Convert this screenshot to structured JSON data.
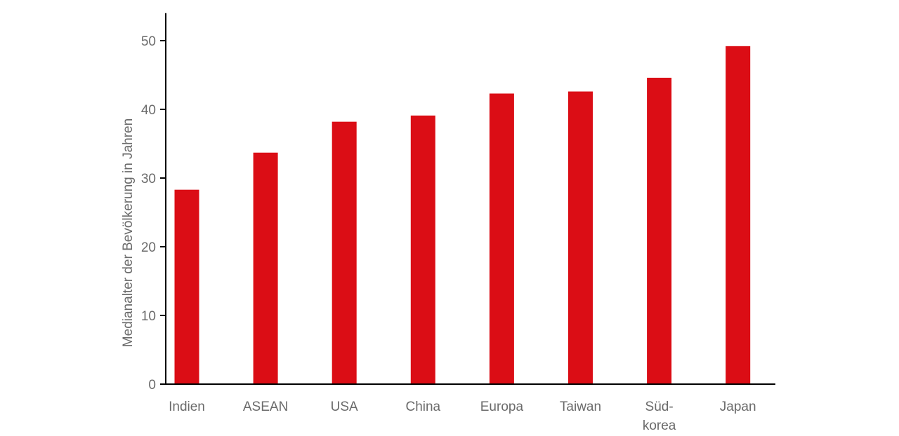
{
  "chart_data": {
    "type": "bar",
    "title": "",
    "xlabel": "",
    "ylabel": "Medianalter der Bevölkerung in Jahren",
    "ylim": [
      0,
      54
    ],
    "yticks": [
      0,
      10,
      20,
      30,
      40,
      50
    ],
    "grid": false,
    "legend": "none",
    "categories": [
      [
        "Indien"
      ],
      [
        "ASEAN"
      ],
      [
        "USA"
      ],
      [
        "China"
      ],
      [
        "Europa"
      ],
      [
        "Taiwan"
      ],
      [
        "Süd-",
        "korea"
      ],
      [
        "Japan"
      ]
    ],
    "values": [
      28.3,
      33.7,
      38.2,
      39.1,
      42.3,
      42.6,
      44.6,
      49.2
    ],
    "colors": {
      "bar": "#db0d15",
      "axis": "#000000",
      "text": "#6b6b6b"
    }
  }
}
